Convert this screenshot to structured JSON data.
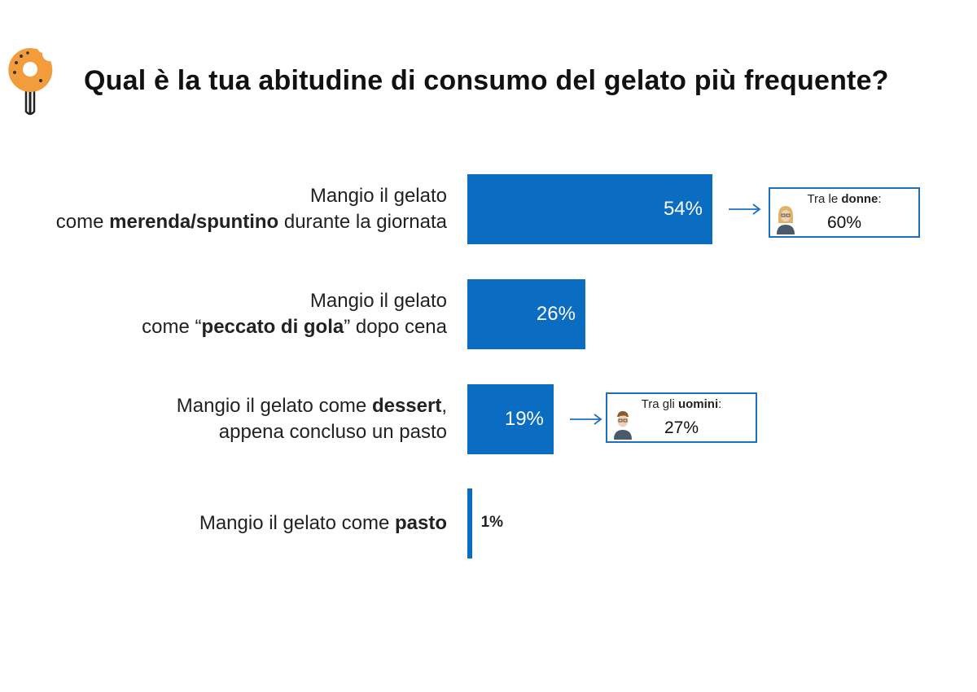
{
  "title": "Qual è la tua abitudine di consumo del gelato più frequente?",
  "colors": {
    "bar": "#0a6dc2",
    "accent_logo": "#f39c3c",
    "callout_border": "#1d6fc0"
  },
  "icons": {
    "logo": "donut-icon",
    "female": "woman-avatar-icon",
    "male": "man-avatar-icon",
    "arrow": "arrow-right-icon"
  },
  "chart_data": {
    "type": "bar",
    "orientation": "horizontal",
    "title": "Qual è la tua abitudine di consumo del gelato più frequente?",
    "xlim": [
      0,
      100
    ],
    "grid": false,
    "categories": [
      "Mangio il gelato come merenda/spuntino durante la giornata",
      "Mangio il gelato come “peccato di gola” dopo cena",
      "Mangio il gelato come dessert, appena concluso un pasto",
      "Mangio il gelato come pasto"
    ],
    "category_lines": [
      {
        "line1": "Mangio il gelato",
        "line2_pre": "come ",
        "line2_bold": "merenda/spuntino",
        "line2_post": " durante la giornata"
      },
      {
        "line1": "Mangio il gelato",
        "line2_pre": "come “",
        "line2_bold": "peccato di gola",
        "line2_post": "” dopo cena"
      },
      {
        "line1_pre": "Mangio il gelato come ",
        "line1_bold": "dessert",
        "line1_post": ",",
        "line2": "appena concluso un pasto"
      },
      {
        "line1_pre": "Mangio il gelato come ",
        "line1_bold": "pasto",
        "line1_post": ""
      }
    ],
    "values": [
      54,
      26,
      19,
      1
    ],
    "value_labels": [
      "54%",
      "26%",
      "19%",
      "1%"
    ],
    "callouts": [
      {
        "category_index": 0,
        "label_pre": "Tra le ",
        "label_bold": "donne",
        "label_post": ":",
        "value": "60%",
        "icon": "woman-avatar-icon"
      },
      {
        "category_index": 2,
        "label_pre": "Tra gli ",
        "label_bold": "uomini",
        "label_post": ":",
        "value": "27%",
        "icon": "man-avatar-icon"
      }
    ]
  }
}
